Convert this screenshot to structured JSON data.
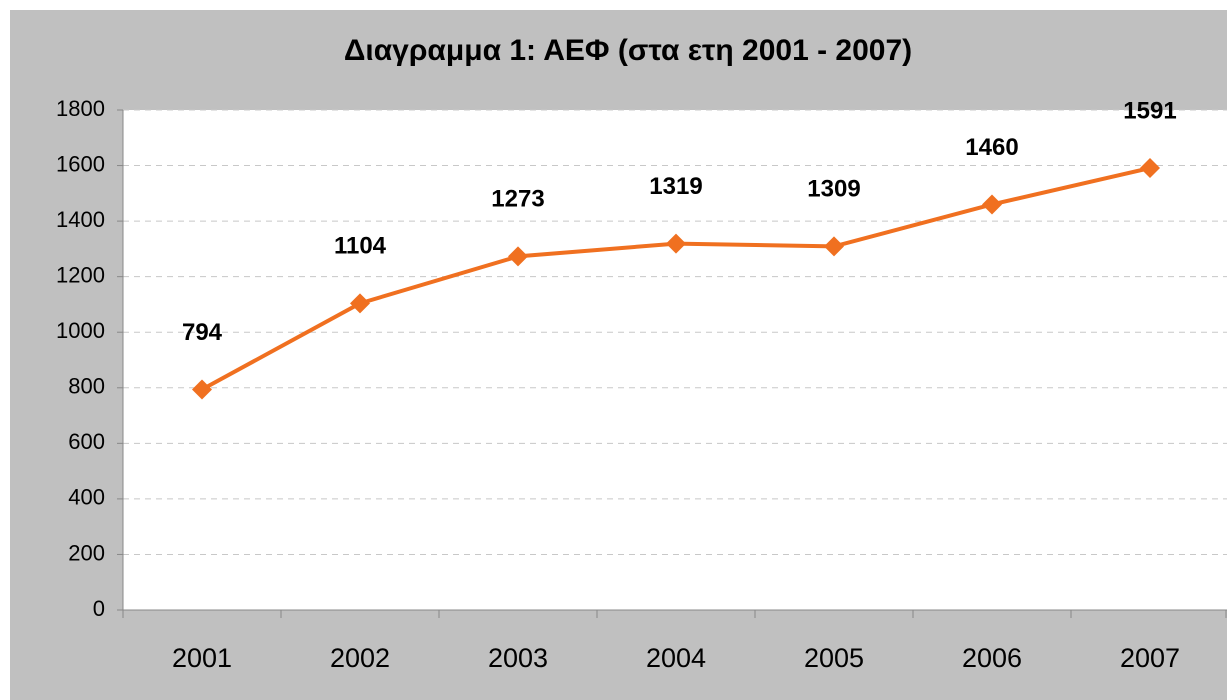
{
  "chart_data": {
    "type": "line",
    "title": "Διαγραμμα 1: ΑΕΦ (στα ετη 2001 - 2007)",
    "categories": [
      "2001",
      "2002",
      "2003",
      "2004",
      "2005",
      "2006",
      "2007"
    ],
    "values": [
      794,
      1104,
      1273,
      1319,
      1309,
      1460,
      1591
    ],
    "color": "#f07020",
    "ylim": [
      0,
      1800
    ],
    "yticks": [
      0,
      200,
      400,
      600,
      800,
      1000,
      1200,
      1400,
      1600,
      1800
    ],
    "grid": true
  }
}
